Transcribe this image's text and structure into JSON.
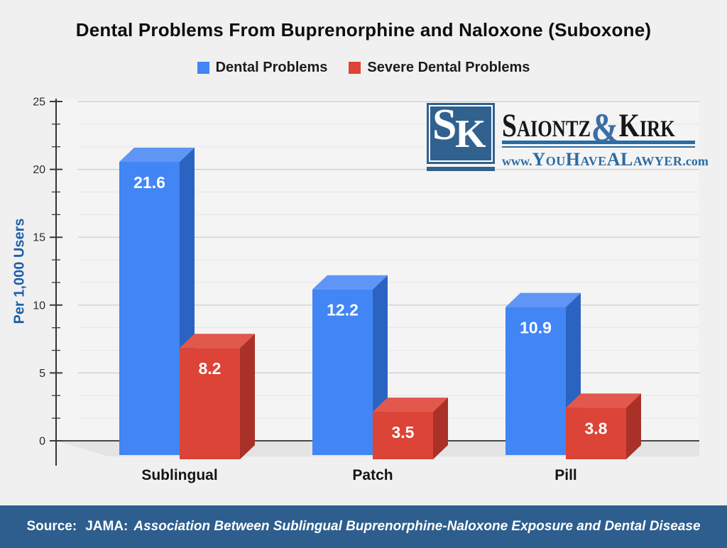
{
  "title": "Dental Problems From Buprenorphine and Naloxone (Suboxone)",
  "chart_data": {
    "type": "bar",
    "style": "3d-grouped",
    "categories": [
      "Sublingual",
      "Patch",
      "Pill"
    ],
    "series": [
      {
        "name": "Dental Problems",
        "color": "#4285f4",
        "values": [
          21.6,
          12.2,
          10.9
        ]
      },
      {
        "name": "Severe Dental Problems",
        "color": "#db4437",
        "values": [
          8.2,
          3.5,
          3.8
        ]
      }
    ],
    "value_labels": [
      "21.6",
      "12.2",
      "10.9",
      "8.2",
      "3.5",
      "3.8"
    ],
    "ylabel": "Per 1,000 Users",
    "xlabel": "",
    "ylim": [
      0,
      25
    ],
    "yticks": [
      0,
      5,
      10,
      15,
      20,
      25
    ],
    "grid": true,
    "legend_position": "top"
  },
  "logo": {
    "monogram_s": "S",
    "monogram_k": "K",
    "firm_name_first": "Saiontz",
    "ampersand": "&",
    "firm_name_second": "Kirk",
    "website_prefix": "www.",
    "website_name": "YouHaveALawyer",
    "website_suffix": ".com"
  },
  "footer": {
    "source_label": "Source:",
    "journal": "JAMA:",
    "study_title": "Association Between Sublingual Buprenorphine-Naloxone Exposure and Dental Disease"
  },
  "colors": {
    "series_blue": "#4285f4",
    "series_red": "#db4437",
    "footer_background": "#2d5e8d",
    "logo_blue": "#31618f",
    "link_blue": "#2b6ca3",
    "ylabel_blue": "#1d5fa8"
  }
}
